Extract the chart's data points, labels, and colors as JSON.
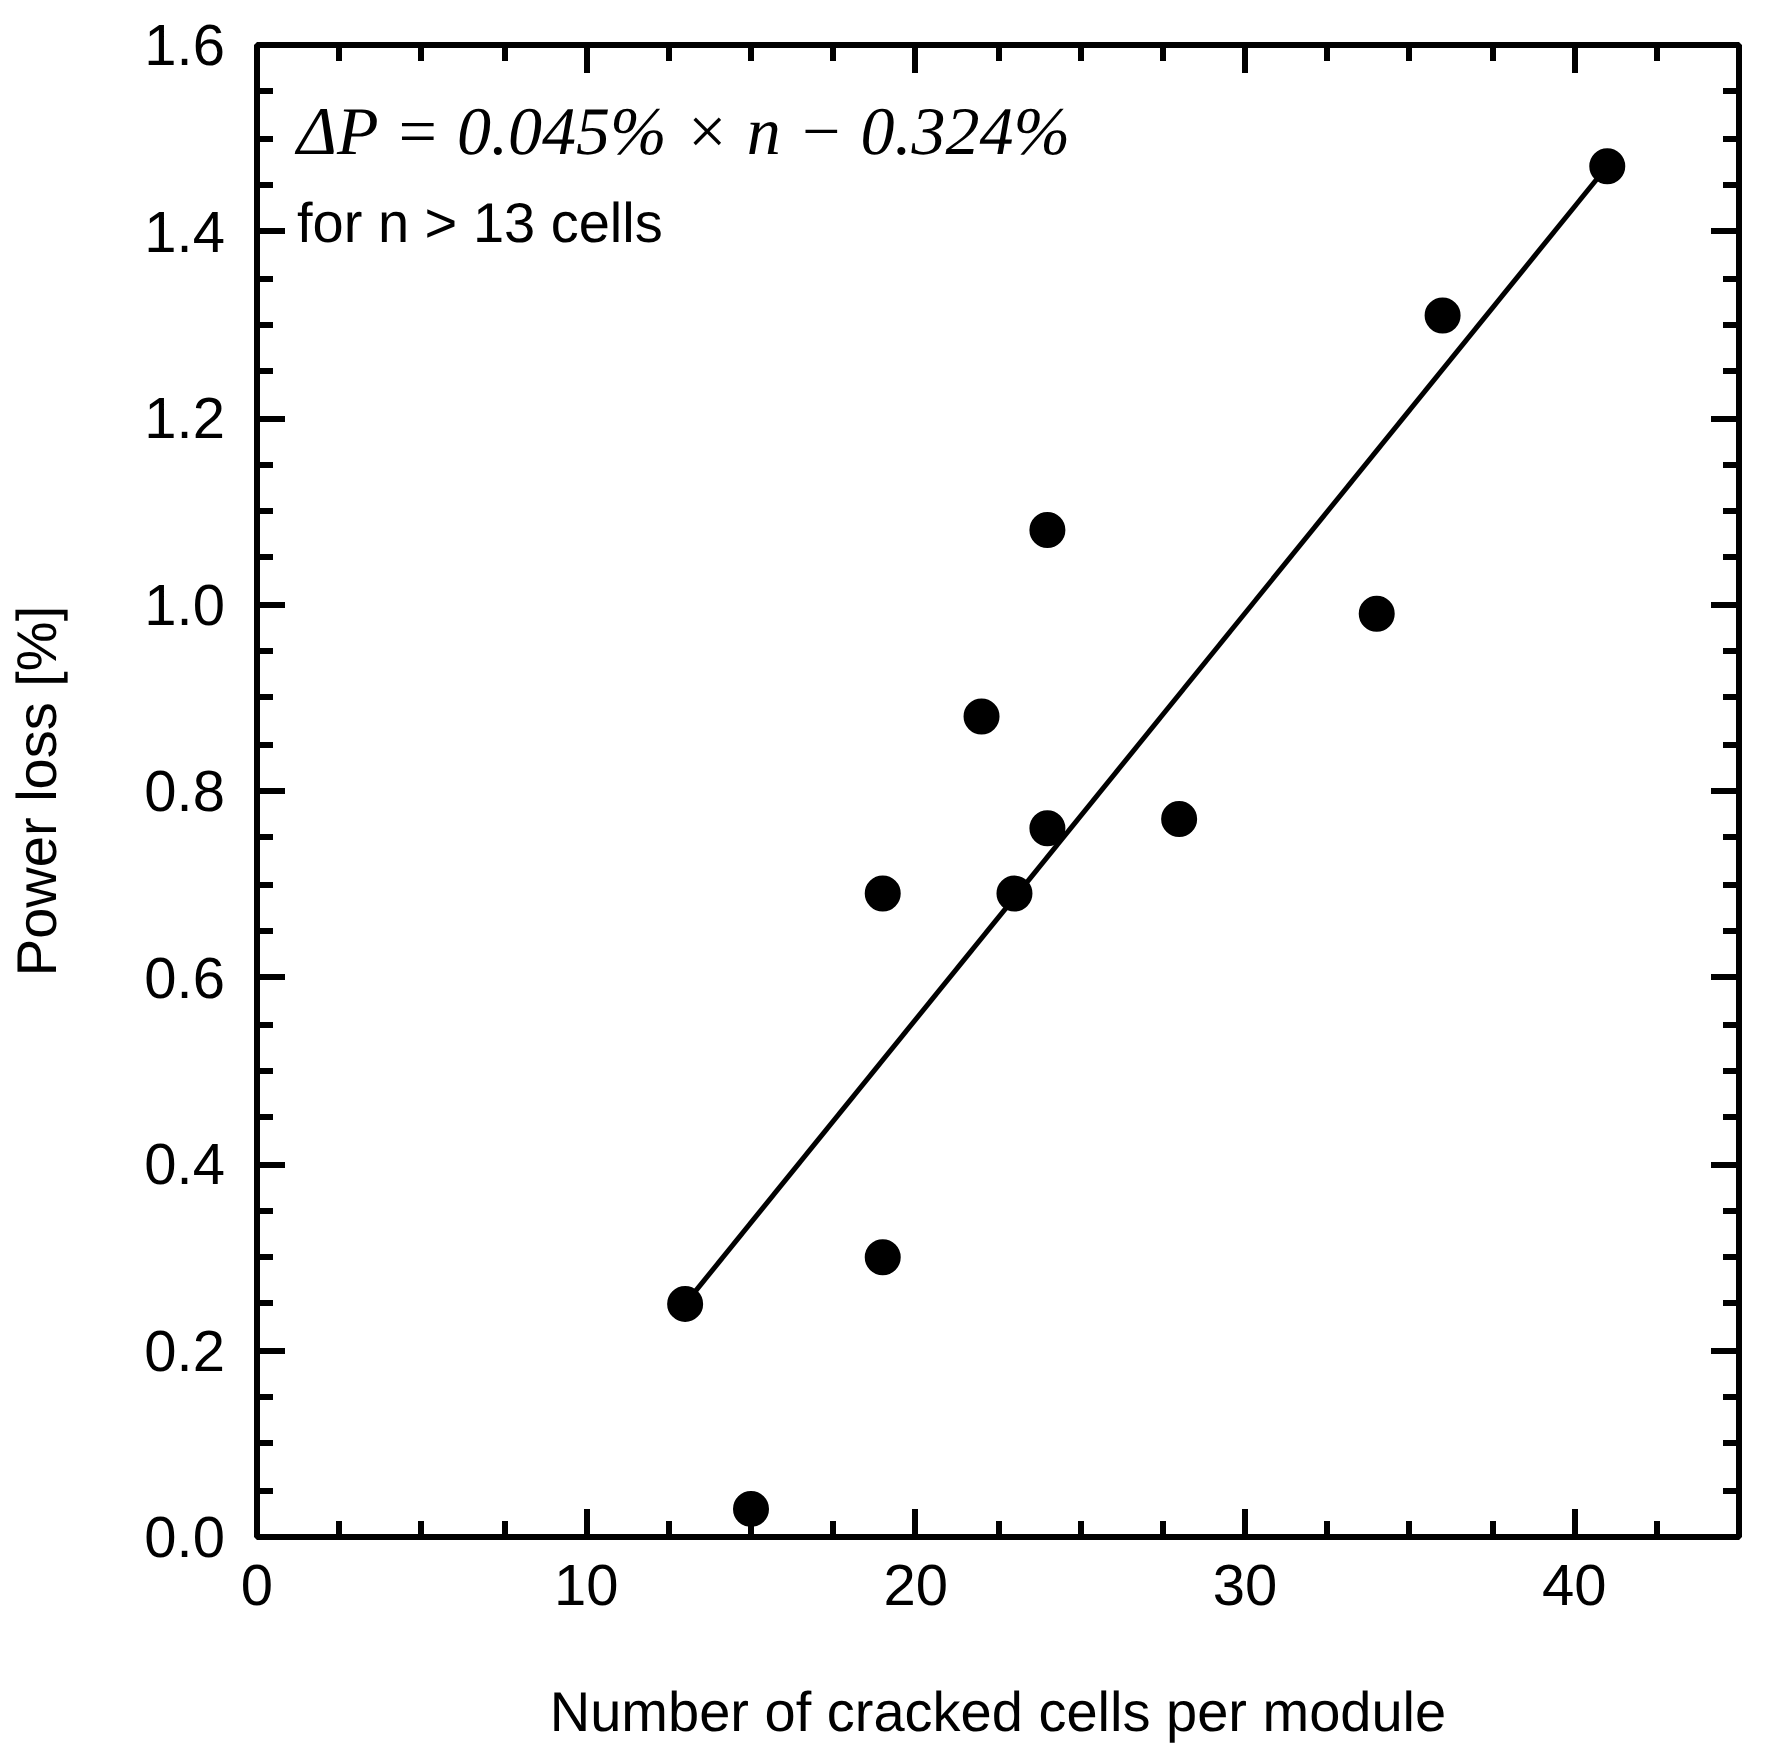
{
  "chart_data": {
    "type": "scatter",
    "xlabel": "Number of cracked cells per module",
    "ylabel": "Power loss [%]",
    "annotations": [
      "ΔP = 0.045% × n − 0.324%",
      "for n > 13 cells"
    ],
    "xlim": [
      0,
      45
    ],
    "xticks": [
      0,
      10,
      20,
      30,
      40
    ],
    "ylim": [
      0,
      1.6
    ],
    "yticks": [
      {
        "value": 0,
        "label": "0.0"
      },
      {
        "value": 0.2,
        "label": "0.2"
      },
      {
        "value": 0.4,
        "label": "0.4"
      },
      {
        "value": 0.6,
        "label": "0.6"
      },
      {
        "value": 0.8,
        "label": "0.8"
      },
      {
        "value": 1.0,
        "label": "1.0"
      },
      {
        "value": 1.2,
        "label": "1.2"
      },
      {
        "value": 1.4,
        "label": "1.4"
      },
      {
        "value": 1.6,
        "label": "1.6"
      }
    ],
    "grid": false,
    "series": [
      {
        "color": "#000000",
        "marker": "circle",
        "x": [
          13,
          15,
          19,
          19,
          22,
          23,
          24,
          24,
          28,
          34,
          36,
          41
        ],
        "values": [
          0.25,
          0.03,
          0.3,
          0.69,
          0.88,
          0.69,
          0.76,
          1.08,
          0.77,
          0.99,
          1.31,
          1.47
        ]
      },
      {
        "type": "line",
        "color": "#000000",
        "marker": "none",
        "line_style": "solid",
        "x": [
          13,
          41
        ],
        "values": [
          0.25,
          1.47
        ]
      }
    ]
  }
}
